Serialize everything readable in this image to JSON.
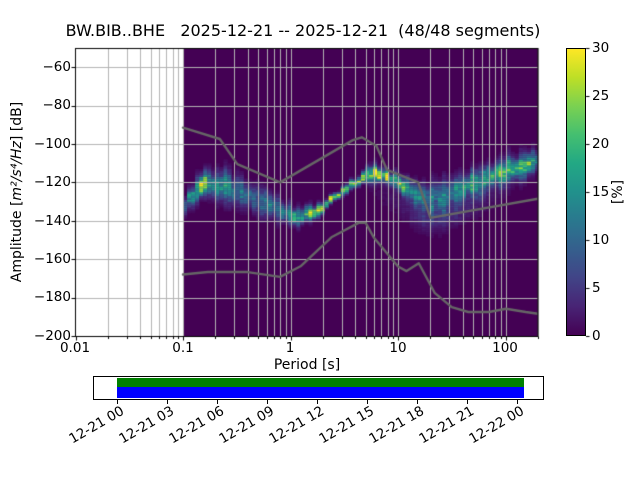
{
  "title": "BW.BIB..BHE   2025-12-21 -- 2025-12-21  (48/48 segments)",
  "axes": {
    "xlabel": "Period [s]",
    "ylabel": {
      "prefix": "Amplitude [",
      "math": "m²/s⁴/Hz",
      "suffix": "] [dB]"
    },
    "xticks": [
      "0.01",
      "0.1",
      "1",
      "10",
      "100"
    ],
    "yticks": [
      "−60",
      "−80",
      "−100",
      "−120",
      "−140",
      "−160",
      "−180",
      "−200"
    ]
  },
  "colorbar": {
    "label": "[%]",
    "ticks": [
      "0",
      "5",
      "10",
      "15",
      "20",
      "25",
      "30"
    ],
    "min": 0,
    "max": 30
  },
  "timeline": {
    "labels": [
      "12-21 00",
      "12-21 03",
      "12-21 06",
      "12-21 09",
      "12-21 12",
      "12-21 15",
      "12-21 18",
      "12-21 21",
      "12-22 00"
    ],
    "coverage_top_color": "#008000",
    "coverage_bottom_color": "#0000ff"
  },
  "colors": {
    "background_nodata": "#ffffff",
    "histogram_zero": "#440154",
    "grid": "#b3b3b3",
    "noise_model_line": "#666666",
    "frame": "#000000",
    "viridis": [
      "#440154",
      "#482475",
      "#414487",
      "#355f8d",
      "#2a788e",
      "#21918c",
      "#22a884",
      "#44bf70",
      "#7ad151",
      "#bddf26",
      "#fde725"
    ]
  },
  "chart_data": {
    "type": "heatmap",
    "title": "BW.BIB..BHE   2025-12-21 -- 2025-12-21  (48/48 segments)",
    "xlabel": "Period [s]",
    "ylabel": "Amplitude [m^2/s^4/Hz] [dB]",
    "colorbar_label": "[%]",
    "x_scale": "log",
    "xlim": [
      0.01,
      200
    ],
    "ylim": [
      -200,
      -50
    ],
    "pct_lim": [
      0,
      30
    ],
    "grid": true,
    "colormap": "viridis",
    "data_period_range": [
      0.1,
      200
    ],
    "period_step_octaves": 0.125,
    "db_bin_width": 1,
    "mode_curve_db": [
      [
        0.1,
        -132.5
      ],
      [
        0.12,
        -127.5
      ],
      [
        0.14,
        -122.8
      ],
      [
        0.155,
        -120.2
      ],
      [
        0.18,
        -120.6
      ],
      [
        0.22,
        -121.8
      ],
      [
        0.28,
        -123.8
      ],
      [
        0.36,
        -126.2
      ],
      [
        0.47,
        -128.8
      ],
      [
        0.6,
        -131.2
      ],
      [
        0.75,
        -133.5
      ],
      [
        0.92,
        -135.6
      ],
      [
        1.1,
        -136.9
      ],
      [
        1.3,
        -137.4
      ],
      [
        1.55,
        -136.3
      ],
      [
        1.9,
        -133.6
      ],
      [
        2.3,
        -130.3
      ],
      [
        2.8,
        -126.8
      ],
      [
        3.4,
        -123.2
      ],
      [
        4.1,
        -119.8
      ],
      [
        5.0,
        -116.8
      ],
      [
        6.0,
        -115.0
      ],
      [
        7.0,
        -115.2
      ],
      [
        8.0,
        -116.5
      ],
      [
        9.0,
        -118.3
      ],
      [
        10.5,
        -121.0
      ],
      [
        12.5,
        -123.8
      ],
      [
        15.0,
        -126.0
      ],
      [
        18.0,
        -127.4
      ],
      [
        22.0,
        -127.6
      ],
      [
        27.0,
        -126.2
      ],
      [
        33.0,
        -124.3
      ],
      [
        42.0,
        -121.9
      ],
      [
        55.0,
        -119.2
      ],
      [
        72.0,
        -116.6
      ],
      [
        95.0,
        -114.0
      ],
      [
        125.0,
        -111.9
      ],
      [
        160.0,
        -110.0
      ],
      [
        200.0,
        -108.3
      ]
    ],
    "peak_pct": [
      [
        0.1,
        16
      ],
      [
        0.12,
        12
      ],
      [
        0.14,
        20
      ],
      [
        0.155,
        30
      ],
      [
        0.18,
        20
      ],
      [
        0.22,
        15
      ],
      [
        0.3,
        12
      ],
      [
        0.45,
        11
      ],
      [
        0.65,
        12
      ],
      [
        0.9,
        14
      ],
      [
        1.15,
        17
      ],
      [
        1.45,
        21
      ],
      [
        1.8,
        26
      ],
      [
        2.3,
        30
      ],
      [
        3.0,
        30
      ],
      [
        4.0,
        30
      ],
      [
        5.0,
        30
      ],
      [
        6.2,
        28
      ],
      [
        7.5,
        25
      ],
      [
        9.0,
        22
      ],
      [
        11.0,
        18
      ],
      [
        14.0,
        14
      ],
      [
        18.0,
        12
      ],
      [
        24.0,
        12
      ],
      [
        32.0,
        14
      ],
      [
        45.0,
        16
      ],
      [
        65.0,
        17
      ],
      [
        90.0,
        18
      ],
      [
        130.0,
        19
      ],
      [
        200.0,
        18
      ]
    ],
    "sigma_db": [
      [
        0.1,
        3.2
      ],
      [
        0.15,
        3.8
      ],
      [
        0.25,
        4.6
      ],
      [
        0.45,
        4.4
      ],
      [
        0.7,
        3.8
      ],
      [
        1.0,
        3.0
      ],
      [
        1.4,
        2.2
      ],
      [
        2.0,
        1.5
      ],
      [
        2.8,
        1.2
      ],
      [
        4.0,
        1.5
      ],
      [
        5.5,
        2.2
      ],
      [
        7.0,
        2.4
      ],
      [
        9.0,
        2.2
      ],
      [
        12.0,
        2.8
      ],
      [
        16.0,
        3.8
      ],
      [
        22.0,
        4.8
      ],
      [
        30.0,
        4.6
      ],
      [
        45.0,
        4.2
      ],
      [
        70.0,
        3.9
      ],
      [
        120.0,
        3.6
      ],
      [
        200.0,
        3.3
      ]
    ],
    "low_tail": {
      "log10_center_period": 1.42,
      "log10_width": 0.33,
      "offset_db": -10.5,
      "sigma_db": 5.2,
      "peak_pct": 4.2
    },
    "noise_models": {
      "nlnm": [
        [
          0.1,
          -168.0
        ],
        [
          0.17,
          -166.7
        ],
        [
          0.4,
          -166.7
        ],
        [
          0.8,
          -169.2
        ],
        [
          1.24,
          -163.7
        ],
        [
          2.4,
          -148.6
        ],
        [
          4.3,
          -141.1
        ],
        [
          5.0,
          -141.1
        ],
        [
          6.0,
          -149.0
        ],
        [
          10.0,
          -163.8
        ],
        [
          12.0,
          -166.2
        ],
        [
          15.6,
          -162.1
        ],
        [
          21.9,
          -177.5
        ],
        [
          31.6,
          -185.0
        ],
        [
          45.0,
          -187.5
        ],
        [
          70.0,
          -187.5
        ],
        [
          101.0,
          -185.8
        ],
        [
          154.0,
          -187.5
        ],
        [
          200.0,
          -188.4
        ]
      ],
      "nhnm": [
        [
          0.1,
          -91.5
        ],
        [
          0.22,
          -97.4
        ],
        [
          0.32,
          -110.5
        ],
        [
          0.8,
          -120.0
        ],
        [
          3.8,
          -98.0
        ],
        [
          4.6,
          -96.5
        ],
        [
          6.3,
          -101.0
        ],
        [
          7.9,
          -113.5
        ],
        [
          15.4,
          -120.0
        ],
        [
          20.0,
          -138.5
        ],
        [
          200.0,
          -128.5
        ]
      ]
    }
  }
}
